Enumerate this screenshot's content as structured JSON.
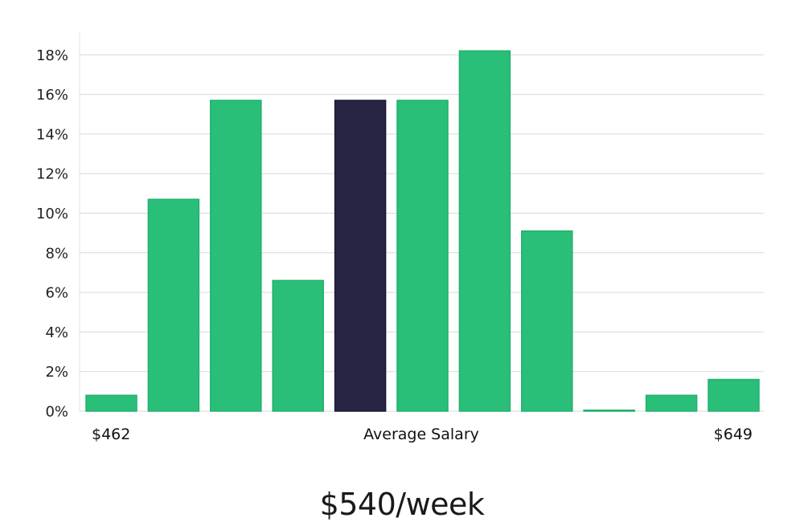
{
  "chart_data": {
    "type": "bar",
    "values": [
      0.8,
      10.7,
      15.7,
      6.6,
      15.7,
      15.7,
      18.2,
      9.1,
      0.05,
      0.8,
      1.6
    ],
    "highlight_index": 4,
    "y_ticks": [
      "0%",
      "2%",
      "4%",
      "6%",
      "8%",
      "10%",
      "12%",
      "14%",
      "16%",
      "18%"
    ],
    "ylim": [
      0,
      19
    ],
    "grid": true,
    "x_labels": {
      "left": "$462",
      "center": "Average Salary",
      "right": "$649"
    },
    "colors": {
      "bar": "#2abf78",
      "bar_edge": "#22b06c",
      "highlight": "#282544"
    }
  },
  "headline": "$540/week"
}
